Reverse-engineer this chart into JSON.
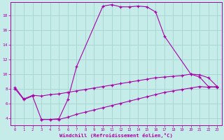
{
  "xlabel": "Windchill (Refroidissement éolien,°C)",
  "bg_color": "#c5ece8",
  "grid_color": "#a8d8d4",
  "line_color": "#aa00aa",
  "xlim": [
    -0.5,
    23.5
  ],
  "ylim": [
    3.0,
    19.8
  ],
  "xticks": [
    0,
    1,
    2,
    3,
    4,
    5,
    6,
    7,
    8,
    9,
    10,
    11,
    12,
    13,
    14,
    15,
    16,
    17,
    18,
    19,
    20,
    21,
    22,
    23
  ],
  "yticks": [
    4,
    6,
    8,
    10,
    12,
    14,
    16,
    18
  ],
  "line1_x": [
    0,
    1,
    2,
    3,
    4,
    5,
    6,
    7,
    10,
    11,
    12,
    13,
    14,
    15,
    16,
    17,
    20,
    21,
    22,
    23
  ],
  "line1_y": [
    8.0,
    6.5,
    7.0,
    3.8,
    3.8,
    3.9,
    6.5,
    11.0,
    19.3,
    19.5,
    19.2,
    19.2,
    19.3,
    19.2,
    18.5,
    15.2,
    10.0,
    9.6,
    8.3,
    8.2
  ],
  "line2_x": [
    0,
    1,
    2,
    3,
    4,
    5,
    6,
    7,
    8,
    9,
    10,
    11,
    12,
    13,
    14,
    15,
    16,
    17,
    18,
    19,
    20,
    21,
    22,
    23
  ],
  "line2_y": [
    8.2,
    6.6,
    7.1,
    7.0,
    7.2,
    7.3,
    7.5,
    7.7,
    7.9,
    8.1,
    8.3,
    8.5,
    8.7,
    8.9,
    9.1,
    9.3,
    9.5,
    9.6,
    9.7,
    9.8,
    10.0,
    9.9,
    9.5,
    8.3
  ],
  "line3_x": [
    3,
    4,
    5,
    6,
    7,
    8,
    9,
    10,
    11,
    12,
    13,
    14,
    15,
    16,
    17,
    18,
    19,
    20,
    21,
    22,
    23
  ],
  "line3_y": [
    3.8,
    3.8,
    3.8,
    4.1,
    4.5,
    4.8,
    5.1,
    5.4,
    5.7,
    6.0,
    6.3,
    6.6,
    6.9,
    7.2,
    7.5,
    7.7,
    7.9,
    8.1,
    8.3,
    8.2,
    8.3
  ]
}
